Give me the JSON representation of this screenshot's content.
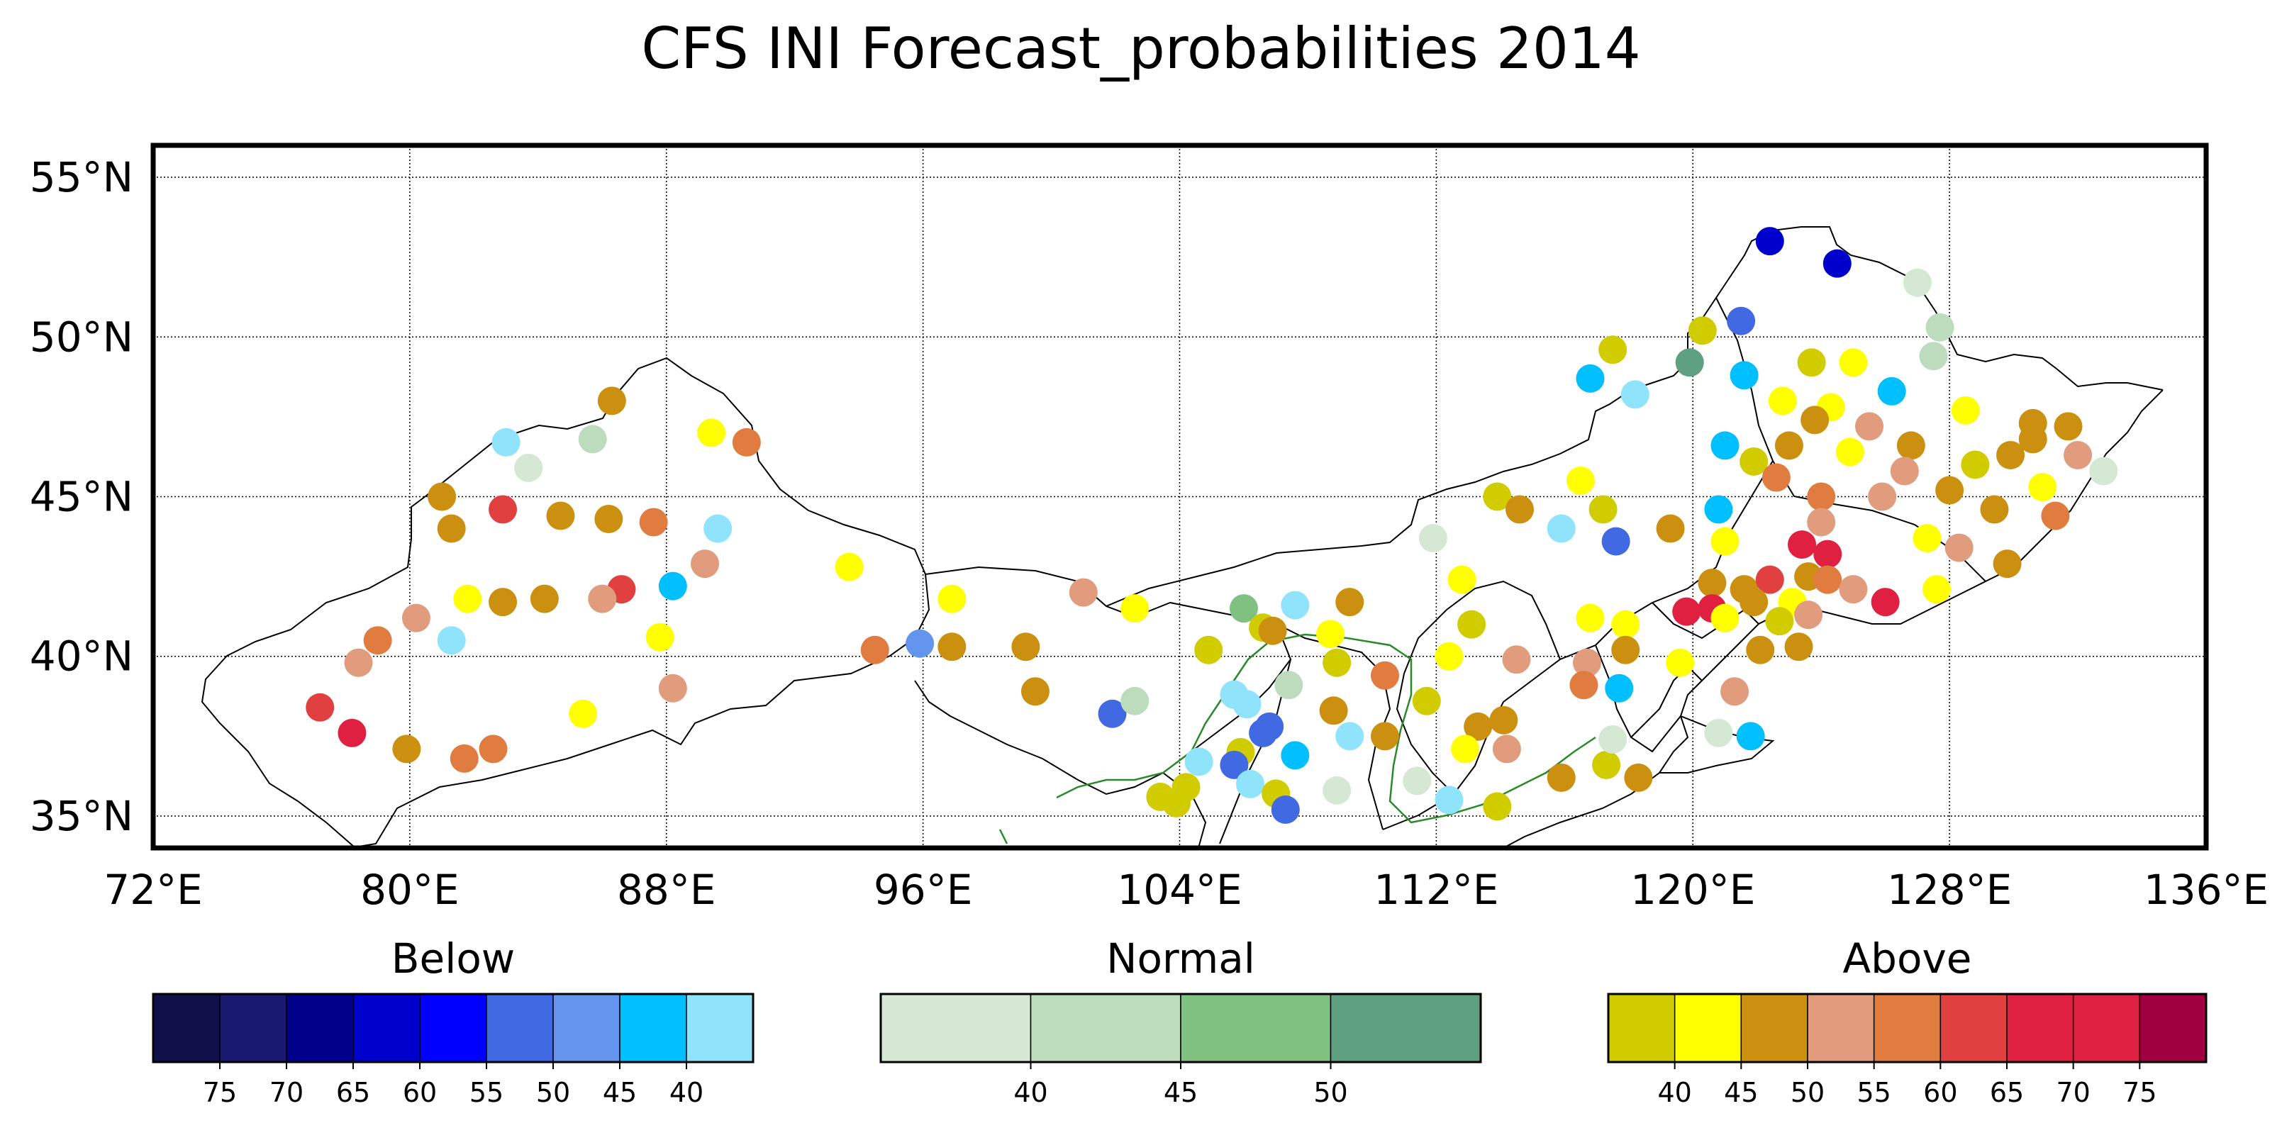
{
  "title": "CFS INI Forecast_probabilities 2014",
  "map": {
    "lon_range": [
      72,
      136
    ],
    "lat_range": [
      34,
      56
    ],
    "lon_ticks": [
      {
        "value": 72,
        "label": "72°E"
      },
      {
        "value": 80,
        "label": "80°E"
      },
      {
        "value": 88,
        "label": "88°E"
      },
      {
        "value": 96,
        "label": "96°E"
      },
      {
        "value": 104,
        "label": "104°E"
      },
      {
        "value": 112,
        "label": "112°E"
      },
      {
        "value": 120,
        "label": "120°E"
      },
      {
        "value": 128,
        "label": "128°E"
      },
      {
        "value": 136,
        "label": "136°E"
      }
    ],
    "lat_ticks": [
      {
        "value": 35,
        "label": "35°N"
      },
      {
        "value": 40,
        "label": "40°N"
      },
      {
        "value": 45,
        "label": "45°N"
      },
      {
        "value": 50,
        "label": "50°N"
      },
      {
        "value": 55,
        "label": "55°N"
      }
    ],
    "grid": true
  },
  "colorbars": [
    {
      "title": "Below",
      "colors": [
        "#10104a",
        "#191970",
        "#00008b",
        "#0000cd",
        "#0000ff",
        "#4169e1",
        "#6495ed",
        "#00bfff",
        "#8fe3fb"
      ],
      "tick_labels": [
        "75",
        "70",
        "65",
        "60",
        "55",
        "50",
        "45",
        "40"
      ]
    },
    {
      "title": "Normal",
      "colors": [
        "#d4e8d4",
        "#bddcbd",
        "#80c080",
        "#5fa080"
      ],
      "tick_labels": [
        "40",
        "45",
        "50"
      ]
    },
    {
      "title": "Above",
      "colors": [
        "#d0cc00",
        "#ffff00",
        "#cc9010",
        "#e09c7c",
        "#e07c40",
        "#e04040",
        "#e02040",
        "#e02040",
        "#a00040"
      ],
      "tick_labels": [
        "40",
        "45",
        "50",
        "55",
        "60",
        "65",
        "70",
        "75"
      ]
    }
  ],
  "stations": [
    {
      "lon": 122.4,
      "lat": 53.0,
      "color": "#0000cd"
    },
    {
      "lon": 124.5,
      "lat": 52.3,
      "color": "#0000cd"
    },
    {
      "lon": 127.0,
      "lat": 51.7,
      "color": "#d4e8d4"
    },
    {
      "lon": 127.7,
      "lat": 50.3,
      "color": "#bddcbd"
    },
    {
      "lon": 121.5,
      "lat": 50.5,
      "color": "#4169e1"
    },
    {
      "lon": 120.3,
      "lat": 50.2,
      "color": "#d0cc00"
    },
    {
      "lon": 119.9,
      "lat": 49.2,
      "color": "#5fa080"
    },
    {
      "lon": 117.5,
      "lat": 49.6,
      "color": "#d0cc00"
    },
    {
      "lon": 123.7,
      "lat": 49.2,
      "color": "#d0cc00"
    },
    {
      "lon": 125.0,
      "lat": 49.2,
      "color": "#ffff00"
    },
    {
      "lon": 127.5,
      "lat": 49.4,
      "color": "#bddcbd"
    },
    {
      "lon": 116.8,
      "lat": 48.7,
      "color": "#00bfff"
    },
    {
      "lon": 118.2,
      "lat": 48.2,
      "color": "#8fe3fb"
    },
    {
      "lon": 121.6,
      "lat": 48.8,
      "color": "#00bfff"
    },
    {
      "lon": 122.8,
      "lat": 48.0,
      "color": "#ffff00"
    },
    {
      "lon": 124.3,
      "lat": 47.8,
      "color": "#ffff00"
    },
    {
      "lon": 126.2,
      "lat": 48.3,
      "color": "#00bfff"
    },
    {
      "lon": 128.5,
      "lat": 47.7,
      "color": "#ffff00"
    },
    {
      "lon": 123.8,
      "lat": 47.4,
      "color": "#cc9010"
    },
    {
      "lon": 125.5,
      "lat": 47.2,
      "color": "#e09c7c"
    },
    {
      "lon": 130.6,
      "lat": 47.3,
      "color": "#cc9010"
    },
    {
      "lon": 131.7,
      "lat": 47.2,
      "color": "#cc9010"
    },
    {
      "lon": 121.0,
      "lat": 46.6,
      "color": "#00bfff"
    },
    {
      "lon": 123.0,
      "lat": 46.6,
      "color": "#cc9010"
    },
    {
      "lon": 126.8,
      "lat": 46.6,
      "color": "#cc9010"
    },
    {
      "lon": 130.6,
      "lat": 46.8,
      "color": "#cc9010"
    },
    {
      "lon": 129.9,
      "lat": 46.3,
      "color": "#cc9010"
    },
    {
      "lon": 124.9,
      "lat": 46.4,
      "color": "#ffff00"
    },
    {
      "lon": 121.9,
      "lat": 46.1,
      "color": "#d0cc00"
    },
    {
      "lon": 122.6,
      "lat": 45.6,
      "color": "#e07c40"
    },
    {
      "lon": 126.6,
      "lat": 45.8,
      "color": "#e09c7c"
    },
    {
      "lon": 128.8,
      "lat": 46.0,
      "color": "#d0cc00"
    },
    {
      "lon": 132.0,
      "lat": 46.3,
      "color": "#e09c7c"
    },
    {
      "lon": 132.8,
      "lat": 45.8,
      "color": "#d4e8d4"
    },
    {
      "lon": 116.5,
      "lat": 45.5,
      "color": "#ffff00"
    },
    {
      "lon": 119.3,
      "lat": 44.0,
      "color": "#cc9010"
    },
    {
      "lon": 117.2,
      "lat": 44.6,
      "color": "#d0cc00"
    },
    {
      "lon": 124.0,
      "lat": 45.0,
      "color": "#e07c40"
    },
    {
      "lon": 125.9,
      "lat": 45.0,
      "color": "#e09c7c"
    },
    {
      "lon": 128.0,
      "lat": 45.2,
      "color": "#cc9010"
    },
    {
      "lon": 129.4,
      "lat": 44.6,
      "color": "#cc9010"
    },
    {
      "lon": 130.9,
      "lat": 45.3,
      "color": "#ffff00"
    },
    {
      "lon": 131.3,
      "lat": 44.4,
      "color": "#e07c40"
    },
    {
      "lon": 120.8,
      "lat": 44.6,
      "color": "#00bfff"
    },
    {
      "lon": 124.0,
      "lat": 44.2,
      "color": "#e09c7c"
    },
    {
      "lon": 115.9,
      "lat": 44.0,
      "color": "#8fe3fb"
    },
    {
      "lon": 113.9,
      "lat": 45.0,
      "color": "#d0cc00"
    },
    {
      "lon": 114.6,
      "lat": 44.6,
      "color": "#cc9010"
    },
    {
      "lon": 117.6,
      "lat": 43.6,
      "color": "#4169e1"
    },
    {
      "lon": 121.0,
      "lat": 43.6,
      "color": "#ffff00"
    },
    {
      "lon": 123.4,
      "lat": 43.5,
      "color": "#e02040"
    },
    {
      "lon": 124.2,
      "lat": 43.2,
      "color": "#e02040"
    },
    {
      "lon": 127.3,
      "lat": 43.7,
      "color": "#ffff00"
    },
    {
      "lon": 128.3,
      "lat": 43.4,
      "color": "#e09c7c"
    },
    {
      "lon": 129.8,
      "lat": 42.9,
      "color": "#cc9010"
    },
    {
      "lon": 111.9,
      "lat": 43.7,
      "color": "#d4e8d4"
    },
    {
      "lon": 112.8,
      "lat": 42.4,
      "color": "#ffff00"
    },
    {
      "lon": 120.6,
      "lat": 42.3,
      "color": "#cc9010"
    },
    {
      "lon": 121.6,
      "lat": 42.1,
      "color": "#cc9010"
    },
    {
      "lon": 122.4,
      "lat": 42.4,
      "color": "#e04040"
    },
    {
      "lon": 123.6,
      "lat": 42.5,
      "color": "#cc9010"
    },
    {
      "lon": 124.2,
      "lat": 42.4,
      "color": "#e07c40"
    },
    {
      "lon": 125.0,
      "lat": 42.1,
      "color": "#e09c7c"
    },
    {
      "lon": 126.0,
      "lat": 41.7,
      "color": "#e02040"
    },
    {
      "lon": 127.6,
      "lat": 42.1,
      "color": "#ffff00"
    },
    {
      "lon": 121.9,
      "lat": 41.7,
      "color": "#cc9010"
    },
    {
      "lon": 123.1,
      "lat": 41.7,
      "color": "#ffff00"
    },
    {
      "lon": 123.6,
      "lat": 41.3,
      "color": "#e09c7c"
    },
    {
      "lon": 122.7,
      "lat": 41.1,
      "color": "#d0cc00"
    },
    {
      "lon": 119.8,
      "lat": 41.4,
      "color": "#e02040"
    },
    {
      "lon": 120.6,
      "lat": 41.5,
      "color": "#e02040"
    },
    {
      "lon": 113.1,
      "lat": 41.0,
      "color": "#d0cc00"
    },
    {
      "lon": 116.8,
      "lat": 41.2,
      "color": "#ffff00"
    },
    {
      "lon": 117.9,
      "lat": 41.0,
      "color": "#ffff00"
    },
    {
      "lon": 121.0,
      "lat": 41.2,
      "color": "#ffff00"
    },
    {
      "lon": 122.1,
      "lat": 40.2,
      "color": "#cc9010"
    },
    {
      "lon": 123.3,
      "lat": 40.3,
      "color": "#cc9010"
    },
    {
      "lon": 117.9,
      "lat": 40.2,
      "color": "#cc9010"
    },
    {
      "lon": 119.6,
      "lat": 39.8,
      "color": "#ffff00"
    },
    {
      "lon": 112.4,
      "lat": 40.0,
      "color": "#ffff00"
    },
    {
      "lon": 114.5,
      "lat": 39.9,
      "color": "#e09c7c"
    },
    {
      "lon": 116.7,
      "lat": 39.8,
      "color": "#e09c7c"
    },
    {
      "lon": 116.6,
      "lat": 39.1,
      "color": "#e07c40"
    },
    {
      "lon": 117.7,
      "lat": 39.0,
      "color": "#00bfff"
    },
    {
      "lon": 121.3,
      "lat": 38.9,
      "color": "#e09c7c"
    },
    {
      "lon": 109.3,
      "lat": 41.7,
      "color": "#cc9010"
    },
    {
      "lon": 107.6,
      "lat": 41.6,
      "color": "#8fe3fb"
    },
    {
      "lon": 108.7,
      "lat": 40.7,
      "color": "#ffff00"
    },
    {
      "lon": 108.9,
      "lat": 39.8,
      "color": "#d0cc00"
    },
    {
      "lon": 110.4,
      "lat": 39.4,
      "color": "#e07c40"
    },
    {
      "lon": 111.7,
      "lat": 38.6,
      "color": "#d0cc00"
    },
    {
      "lon": 113.3,
      "lat": 37.8,
      "color": "#cc9010"
    },
    {
      "lon": 114.1,
      "lat": 38.0,
      "color": "#cc9010"
    },
    {
      "lon": 114.2,
      "lat": 37.1,
      "color": "#e09c7c"
    },
    {
      "lon": 112.9,
      "lat": 37.1,
      "color": "#ffff00"
    },
    {
      "lon": 110.4,
      "lat": 37.5,
      "color": "#cc9010"
    },
    {
      "lon": 109.3,
      "lat": 37.5,
      "color": "#8fe3fb"
    },
    {
      "lon": 108.8,
      "lat": 38.3,
      "color": "#cc9010"
    },
    {
      "lon": 106.0,
      "lat": 41.5,
      "color": "#80c080"
    },
    {
      "lon": 106.6,
      "lat": 40.9,
      "color": "#d0cc00"
    },
    {
      "lon": 106.9,
      "lat": 40.8,
      "color": "#cc9010"
    },
    {
      "lon": 107.4,
      "lat": 39.1,
      "color": "#bddcbd"
    },
    {
      "lon": 104.9,
      "lat": 40.2,
      "color": "#d0cc00"
    },
    {
      "lon": 102.6,
      "lat": 41.5,
      "color": "#ffff00"
    },
    {
      "lon": 101.0,
      "lat": 42.0,
      "color": "#e09c7c"
    },
    {
      "lon": 96.9,
      "lat": 41.8,
      "color": "#ffff00"
    },
    {
      "lon": 96.9,
      "lat": 40.3,
      "color": "#cc9010"
    },
    {
      "lon": 95.9,
      "lat": 40.4,
      "color": "#6495ed"
    },
    {
      "lon": 94.5,
      "lat": 40.2,
      "color": "#e07c40"
    },
    {
      "lon": 99.2,
      "lat": 40.3,
      "color": "#cc9010"
    },
    {
      "lon": 99.5,
      "lat": 38.9,
      "color": "#cc9010"
    },
    {
      "lon": 101.9,
      "lat": 38.2,
      "color": "#4169e1"
    },
    {
      "lon": 102.6,
      "lat": 38.6,
      "color": "#bddcbd"
    },
    {
      "lon": 105.7,
      "lat": 38.8,
      "color": "#8fe3fb"
    },
    {
      "lon": 106.1,
      "lat": 38.5,
      "color": "#8fe3fb"
    },
    {
      "lon": 106.8,
      "lat": 37.8,
      "color": "#4169e1"
    },
    {
      "lon": 106.6,
      "lat": 37.6,
      "color": "#4169e1"
    },
    {
      "lon": 107.6,
      "lat": 36.9,
      "color": "#00bfff"
    },
    {
      "lon": 105.9,
      "lat": 37.0,
      "color": "#d0cc00"
    },
    {
      "lon": 105.7,
      "lat": 36.6,
      "color": "#4169e1"
    },
    {
      "lon": 104.6,
      "lat": 36.7,
      "color": "#8fe3fb"
    },
    {
      "lon": 106.2,
      "lat": 36.0,
      "color": "#8fe3fb"
    },
    {
      "lon": 107.0,
      "lat": 35.7,
      "color": "#d0cc00"
    },
    {
      "lon": 107.3,
      "lat": 35.2,
      "color": "#4169e1"
    },
    {
      "lon": 103.4,
      "lat": 35.6,
      "color": "#d0cc00"
    },
    {
      "lon": 103.9,
      "lat": 35.4,
      "color": "#d0cc00"
    },
    {
      "lon": 104.2,
      "lat": 35.9,
      "color": "#d0cc00"
    },
    {
      "lon": 108.9,
      "lat": 35.8,
      "color": "#d4e8d4"
    },
    {
      "lon": 111.4,
      "lat": 36.1,
      "color": "#d4e8d4"
    },
    {
      "lon": 112.4,
      "lat": 35.5,
      "color": "#8fe3fb"
    },
    {
      "lon": 113.9,
      "lat": 35.3,
      "color": "#d0cc00"
    },
    {
      "lon": 115.9,
      "lat": 36.2,
      "color": "#cc9010"
    },
    {
      "lon": 117.3,
      "lat": 36.6,
      "color": "#d0cc00"
    },
    {
      "lon": 118.3,
      "lat": 36.2,
      "color": "#cc9010"
    },
    {
      "lon": 117.5,
      "lat": 37.4,
      "color": "#d4e8d4"
    },
    {
      "lon": 120.8,
      "lat": 37.6,
      "color": "#d4e8d4"
    },
    {
      "lon": 121.8,
      "lat": 37.5,
      "color": "#00bfff"
    },
    {
      "lon": 86.3,
      "lat": 48.0,
      "color": "#cc9010"
    },
    {
      "lon": 89.4,
      "lat": 47.0,
      "color": "#ffff00"
    },
    {
      "lon": 90.5,
      "lat": 46.7,
      "color": "#e07c40"
    },
    {
      "lon": 85.7,
      "lat": 46.8,
      "color": "#bddcbd"
    },
    {
      "lon": 83.0,
      "lat": 46.7,
      "color": "#8fe3fb"
    },
    {
      "lon": 83.7,
      "lat": 45.9,
      "color": "#d4e8d4"
    },
    {
      "lon": 81.0,
      "lat": 45.0,
      "color": "#cc9010"
    },
    {
      "lon": 81.3,
      "lat": 44.0,
      "color": "#cc9010"
    },
    {
      "lon": 82.9,
      "lat": 44.6,
      "color": "#e04040"
    },
    {
      "lon": 84.7,
      "lat": 44.4,
      "color": "#cc9010"
    },
    {
      "lon": 86.2,
      "lat": 44.3,
      "color": "#cc9010"
    },
    {
      "lon": 87.6,
      "lat": 44.2,
      "color": "#e07c40"
    },
    {
      "lon": 89.6,
      "lat": 44.0,
      "color": "#8fe3fb"
    },
    {
      "lon": 89.2,
      "lat": 42.9,
      "color": "#e09c7c"
    },
    {
      "lon": 93.7,
      "lat": 42.8,
      "color": "#ffff00"
    },
    {
      "lon": 88.2,
      "lat": 42.2,
      "color": "#00bfff"
    },
    {
      "lon": 86.6,
      "lat": 42.1,
      "color": "#e04040"
    },
    {
      "lon": 86.0,
      "lat": 41.8,
      "color": "#e09c7c"
    },
    {
      "lon": 84.2,
      "lat": 41.8,
      "color": "#cc9010"
    },
    {
      "lon": 82.9,
      "lat": 41.7,
      "color": "#cc9010"
    },
    {
      "lon": 81.8,
      "lat": 41.8,
      "color": "#ffff00"
    },
    {
      "lon": 80.2,
      "lat": 41.2,
      "color": "#e09c7c"
    },
    {
      "lon": 81.3,
      "lat": 40.5,
      "color": "#8fe3fb"
    },
    {
      "lon": 79.0,
      "lat": 40.5,
      "color": "#e07c40"
    },
    {
      "lon": 78.4,
      "lat": 39.8,
      "color": "#e09c7c"
    },
    {
      "lon": 87.8,
      "lat": 40.6,
      "color": "#ffff00"
    },
    {
      "lon": 88.2,
      "lat": 39.0,
      "color": "#e09c7c"
    },
    {
      "lon": 85.4,
      "lat": 38.2,
      "color": "#ffff00"
    },
    {
      "lon": 77.2,
      "lat": 38.4,
      "color": "#e04040"
    },
    {
      "lon": 78.2,
      "lat": 37.6,
      "color": "#e02040"
    },
    {
      "lon": 79.9,
      "lat": 37.1,
      "color": "#cc9010"
    },
    {
      "lon": 81.7,
      "lat": 36.8,
      "color": "#e07c40"
    },
    {
      "lon": 82.6,
      "lat": 37.1,
      "color": "#e07c40"
    }
  ]
}
